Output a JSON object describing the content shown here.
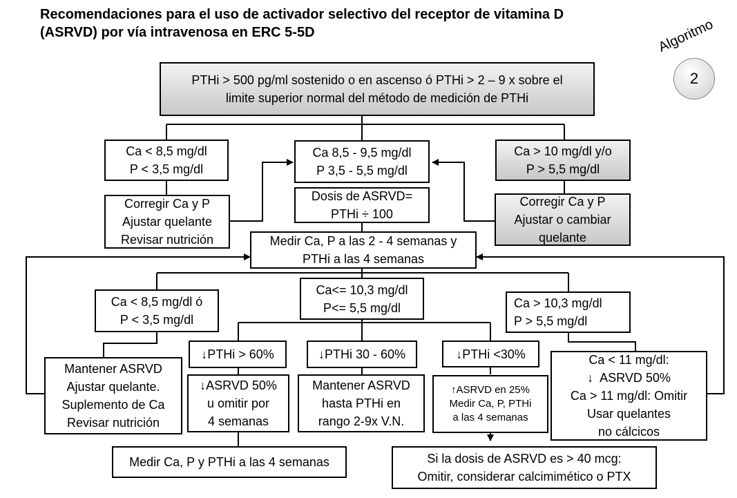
{
  "title": {
    "line1": "Recomendaciones para el uso de activador selectivo del receptor de vitamina D",
    "line2": "(ASRVD) por vía intravenosa en ERC 5-5D"
  },
  "badge": {
    "label": "Algoritmo",
    "number": "2"
  },
  "nodes": {
    "top": [
      "PTHi > 500 pg/ml sostenido o en ascenso ó PTHi > 2 – 9 x sobre el",
      "limite superior normal del método de medición de PTHi"
    ],
    "ca_low": [
      "Ca < 8,5 mg/dl",
      "P < 3,5 mg/dl"
    ],
    "ca_normal": [
      "Ca 8,5 - 9,5 mg/dl",
      "P 3,5 - 5,5 mg/dl"
    ],
    "ca_high": [
      "Ca > 10 mg/dl y/o",
      "P > 5,5 mg/dl"
    ],
    "correct_left": [
      "Corregir Ca y P",
      "Ajustar quelante",
      "Revisar nutrición"
    ],
    "dose": [
      "Dosis de ASRVD=",
      "PTHi ÷ 100"
    ],
    "correct_right": [
      "Corregir Ca y P",
      "Ajustar o cambiar",
      "quelante"
    ],
    "measure": [
      "Medir Ca, P a las 2 - 4 semanas y",
      "PTHi a las 4 semanas"
    ],
    "low2": [
      "Ca < 8,5 mg/dl ó",
      "P < 3,5 mg/dl"
    ],
    "normal2": [
      "Ca<= 10,3 mg/dl",
      "P<=  5,5 mg/dl"
    ],
    "high2": [
      "Ca > 10,3 mg/dl",
      "P > 5,5 mg/dl"
    ],
    "maintain_left": [
      "Mantener ASRVD",
      "Ajustar quelante.",
      "Suplemento de Ca",
      "Revisar nutrición"
    ],
    "pth60": "PTHi > 60%",
    "pth3060": "PTHi 30 - 60%",
    "pth30": "PTHi <30%",
    "high_action": [
      "Ca < 11 mg/dl:",
      "ASRVD 50%",
      "Ca > 11 mg/dl: Omitir",
      "Usar quelantes",
      "no cálcicos"
    ],
    "reduce50": [
      "ASRVD 50%",
      "u omitir por",
      "4 semanas"
    ],
    "maintain_mid": [
      "Mantener ASRVD",
      "hasta PTHi en",
      "rango 2-9x V.N."
    ],
    "increase25": [
      "ASRVD en 25%",
      "Medir Ca, P, PTHi",
      "a las 4 semanas"
    ],
    "measure_final": "Medir Ca, P y PTHi a las 4 semanas",
    "dose_high": [
      "Si la dosis de ASRVD es > 40 mcg:",
      "Omitir, considerar calcimimético o PTX"
    ]
  }
}
